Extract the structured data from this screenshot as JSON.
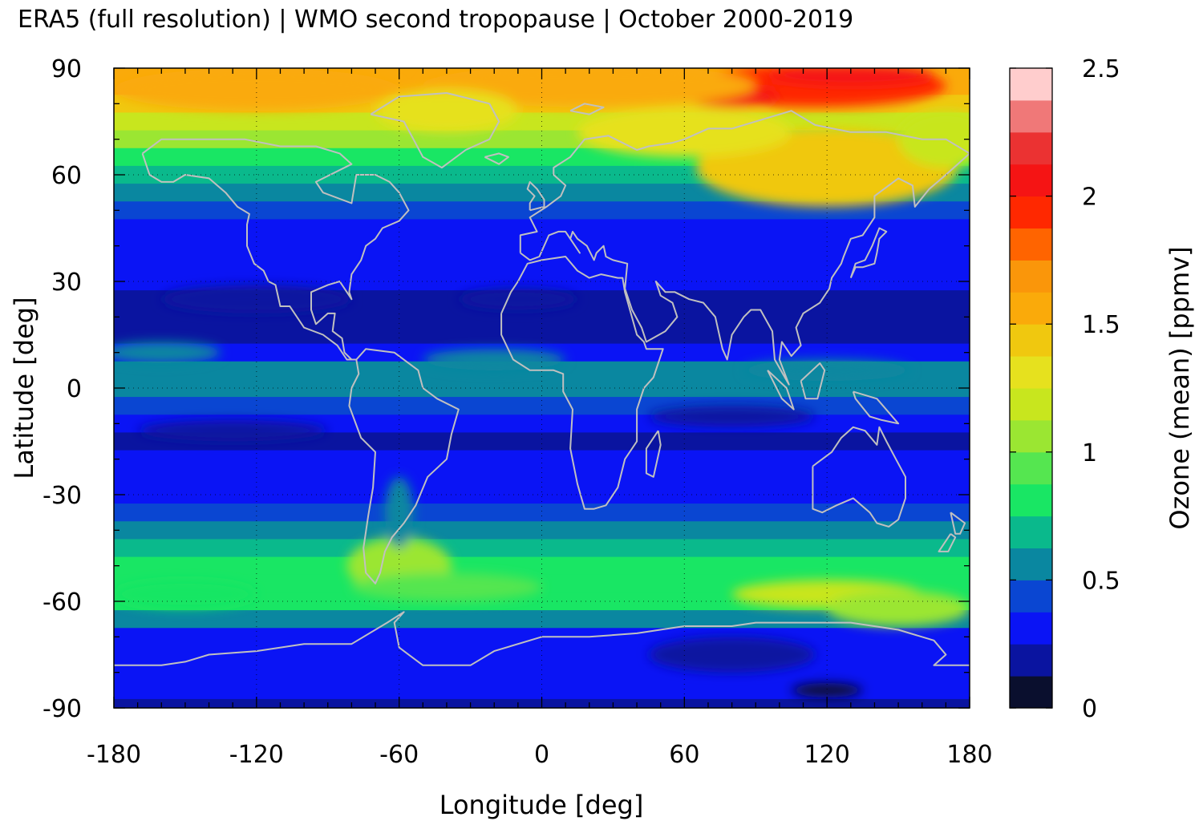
{
  "title": "ERA5 (full resolution) | WMO second tropopause | October 2000-2019",
  "chart_data": {
    "type": "heatmap",
    "title": "ERA5 (full resolution) | WMO second tropopause | October 2000-2019",
    "xlabel": "Longitude [deg]",
    "ylabel": "Latitude [deg]",
    "xlim": [
      -180,
      180
    ],
    "ylim": [
      -90,
      90
    ],
    "x_ticks": [
      -180,
      -120,
      -60,
      0,
      60,
      120,
      180
    ],
    "y_ticks": [
      -90,
      -60,
      -30,
      0,
      30,
      60,
      90
    ],
    "x_tick_labels": [
      "-180",
      "-120",
      "-60",
      "0",
      "60",
      "120",
      "180"
    ],
    "y_tick_labels": [
      "-90",
      "-60",
      "-30",
      "0",
      "30",
      "60",
      "90"
    ],
    "grid": true,
    "colorbar": {
      "label": "Ozone (mean) [ppmv]",
      "range": [
        0,
        2.5
      ],
      "ticks": [
        0,
        0.5,
        1,
        1.5,
        2,
        2.5
      ],
      "tick_labels": [
        "0",
        "0.5",
        "1",
        "1.5",
        "2",
        "2.5"
      ],
      "levels": [
        {
          "from": 0.0,
          "to": 0.125,
          "color": "#0a0f2e"
        },
        {
          "from": 0.125,
          "to": 0.25,
          "color": "#0a14a0"
        },
        {
          "from": 0.25,
          "to": 0.375,
          "color": "#0a14f5"
        },
        {
          "from": 0.375,
          "to": 0.5,
          "color": "#0a46d2"
        },
        {
          "from": 0.5,
          "to": 0.625,
          "color": "#0a87a0"
        },
        {
          "from": 0.625,
          "to": 0.75,
          "color": "#0ab98c"
        },
        {
          "from": 0.75,
          "to": 0.875,
          "color": "#19e664"
        },
        {
          "from": 0.875,
          "to": 1.0,
          "color": "#55e650"
        },
        {
          "from": 1.0,
          "to": 1.125,
          "color": "#9be632"
        },
        {
          "from": 1.125,
          "to": 1.25,
          "color": "#c8e61e"
        },
        {
          "from": 1.25,
          "to": 1.375,
          "color": "#e6e11e"
        },
        {
          "from": 1.375,
          "to": 1.5,
          "color": "#f0c80f"
        },
        {
          "from": 1.5,
          "to": 1.625,
          "color": "#faaa0a"
        },
        {
          "from": 1.625,
          "to": 1.75,
          "color": "#fa960a"
        },
        {
          "from": 1.75,
          "to": 1.875,
          "color": "#ff6400"
        },
        {
          "from": 1.875,
          "to": 2.0,
          "color": "#ff2800"
        },
        {
          "from": 2.0,
          "to": 2.125,
          "color": "#f51414"
        },
        {
          "from": 2.125,
          "to": 2.25,
          "color": "#eb3232"
        },
        {
          "from": 2.25,
          "to": 2.375,
          "color": "#f07878"
        },
        {
          "from": 2.375,
          "to": 2.5,
          "color": "#ffcdcd"
        }
      ]
    },
    "zonal_mean_profile": {
      "latitude": [
        90,
        85,
        80,
        75,
        70,
        65,
        60,
        55,
        50,
        45,
        40,
        35,
        30,
        25,
        20,
        15,
        10,
        5,
        0,
        -5,
        -10,
        -15,
        -20,
        -25,
        -30,
        -35,
        -40,
        -45,
        -50,
        -55,
        -60,
        -65,
        -70,
        -75,
        -80,
        -85,
        -90
      ],
      "ozone_ppmv": [
        1.6,
        1.55,
        1.4,
        1.2,
        1.0,
        0.85,
        0.65,
        0.5,
        0.4,
        0.35,
        0.32,
        0.3,
        0.25,
        0.22,
        0.18,
        0.2,
        0.3,
        0.55,
        0.5,
        0.45,
        0.3,
        0.22,
        0.3,
        0.33,
        0.35,
        0.45,
        0.55,
        0.7,
        0.82,
        0.85,
        0.75,
        0.5,
        0.35,
        0.3,
        0.28,
        0.25,
        0.2
      ]
    },
    "coastline_color": "#c0c0c0"
  }
}
